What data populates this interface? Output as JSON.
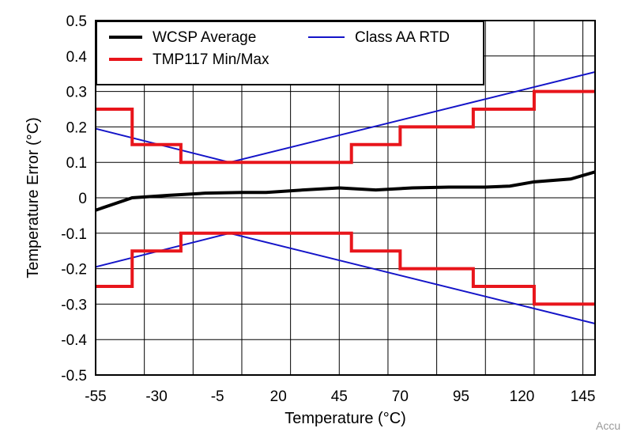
{
  "chart_data": {
    "type": "line",
    "xlabel": "Temperature (°C)",
    "ylabel": "Temperature Error (°C)",
    "xlim": [
      -55,
      150
    ],
    "ylim": [
      -0.5,
      0.5
    ],
    "x_ticks": [
      -55,
      -30,
      -5,
      20,
      45,
      70,
      95,
      120,
      145
    ],
    "x_tick_labels": [
      "-55",
      "-30",
      "-5",
      "20",
      "45",
      "70",
      "95",
      "120",
      "145"
    ],
    "y_ticks": [
      -0.5,
      -0.4,
      -0.3,
      -0.2,
      -0.1,
      0,
      0.1,
      0.2,
      0.3,
      0.4,
      0.5
    ],
    "y_tick_labels": [
      "-0.5",
      "-0.4",
      "-0.3",
      "-0.2",
      "-0.1",
      "0",
      "0.1",
      "0.2",
      "0.3",
      "0.4",
      "0.5"
    ],
    "x_grid": [
      -55,
      -35,
      -15,
      5,
      25,
      45,
      65,
      85,
      105,
      125,
      145
    ],
    "grid": true,
    "legend_position": "top-left",
    "series": [
      {
        "name": "WCSP Average",
        "color": "#000000",
        "width": 4,
        "x": [
          -55,
          -40,
          -25,
          -10,
          5,
          15,
          30,
          45,
          60,
          75,
          90,
          105,
          115,
          125,
          140,
          150
        ],
        "y": [
          -0.035,
          0.0,
          0.007,
          0.013,
          0.015,
          0.015,
          0.022,
          0.028,
          0.022,
          0.028,
          0.03,
          0.03,
          0.033,
          0.045,
          0.053,
          0.073
        ]
      },
      {
        "name": "Class AA RTD",
        "color": "#1414c8",
        "width": 2,
        "x": [
          -55,
          0,
          150
        ],
        "y": [
          0.195,
          0.1,
          0.355
        ]
      },
      {
        "name": "",
        "color": "#1414c8",
        "width": 2,
        "x": [
          -55,
          0,
          150
        ],
        "y": [
          -0.195,
          -0.1,
          -0.355
        ]
      },
      {
        "name": "TMP117 Min/Max",
        "color": "#e8151b",
        "width": 4,
        "x": [
          -55,
          -40,
          -40,
          -20,
          -20,
          50,
          50,
          70,
          70,
          100,
          100,
          125,
          125,
          150
        ],
        "y": [
          0.25,
          0.25,
          0.15,
          0.15,
          0.1,
          0.1,
          0.15,
          0.15,
          0.2,
          0.2,
          0.25,
          0.25,
          0.3,
          0.3
        ]
      },
      {
        "name": "",
        "color": "#e8151b",
        "width": 4,
        "x": [
          -55,
          -40,
          -40,
          -20,
          -20,
          50,
          50,
          70,
          70,
          100,
          100,
          125,
          125,
          150
        ],
        "y": [
          -0.25,
          -0.25,
          -0.15,
          -0.15,
          -0.1,
          -0.1,
          -0.15,
          -0.15,
          -0.2,
          -0.2,
          -0.25,
          -0.25,
          -0.3,
          -0.3
        ]
      }
    ],
    "legend": [
      {
        "label": "WCSP Average",
        "color": "#000000",
        "width": 4
      },
      {
        "label": "Class AA RTD",
        "color": "#1414c8",
        "width": 2
      },
      {
        "label": "TMP117 Min/Max",
        "color": "#e8151b",
        "width": 4
      }
    ]
  },
  "watermark": "Accu"
}
